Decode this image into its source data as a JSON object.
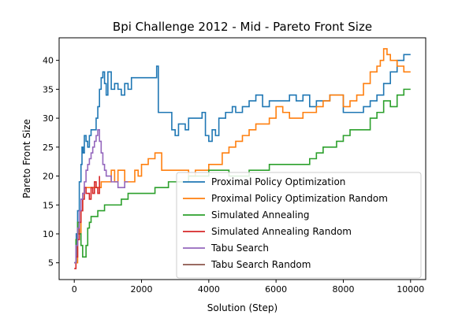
{
  "chart_data": {
    "type": "line",
    "title": "Bpi Challenge 2012 - Mid - Pareto Front Size",
    "xlabel": "Solution (Step)",
    "ylabel": "Pareto Front Size",
    "xlim": [
      -450,
      10450
    ],
    "ylim": [
      2.1,
      43.9
    ],
    "xticks": [
      0,
      2000,
      4000,
      6000,
      8000,
      10000
    ],
    "yticks": [
      5,
      10,
      15,
      20,
      25,
      30,
      35,
      40
    ],
    "legend_position": "lower-right",
    "series": [
      {
        "name": "Proximal Policy Optimization",
        "color": "#1f77b4",
        "x": [
          0,
          60,
          100,
          150,
          200,
          230,
          260,
          300,
          350,
          400,
          450,
          500,
          550,
          600,
          650,
          700,
          750,
          800,
          850,
          900,
          950,
          1000,
          1100,
          1200,
          1300,
          1400,
          1500,
          1600,
          1700,
          1800,
          1900,
          2000,
          2100,
          2200,
          2300,
          2400,
          2450,
          2500,
          2800,
          2900,
          3000,
          3100,
          3200,
          3300,
          3400,
          3500,
          3600,
          3700,
          3800,
          3900,
          4000,
          4100,
          4200,
          4300,
          4400,
          4500,
          4600,
          4700,
          4800,
          5000,
          5200,
          5400,
          5600,
          5800,
          6000,
          6200,
          6400,
          6600,
          6800,
          7000,
          7200,
          7400,
          7600,
          7800,
          8000,
          8200,
          8400,
          8600,
          8800,
          9000,
          9200,
          9400,
          9600,
          9800,
          10000
        ],
        "values": [
          5,
          10,
          14,
          19,
          22,
          25,
          24,
          27,
          26,
          25,
          27,
          28,
          28,
          28,
          30,
          32,
          35,
          37,
          38,
          36,
          34,
          38,
          35,
          36,
          35,
          34,
          36,
          35,
          37,
          37,
          37,
          37,
          37,
          37,
          37,
          37,
          39,
          31,
          31,
          28,
          27,
          29,
          29,
          28,
          30,
          30,
          30,
          30,
          31,
          27,
          26,
          28,
          27,
          30,
          30,
          31,
          31,
          32,
          31,
          32,
          33,
          34,
          32,
          33,
          33,
          33,
          34,
          33,
          34,
          32,
          33,
          33,
          34,
          34,
          31,
          31,
          31,
          32,
          33,
          34,
          36,
          38,
          40,
          41,
          41
        ]
      },
      {
        "name": "Proximal Policy Optimization Random",
        "color": "#ff7f0e",
        "x": [
          0,
          100,
          200,
          250,
          300,
          400,
          500,
          600,
          700,
          800,
          900,
          1000,
          1100,
          1200,
          1300,
          1400,
          1500,
          1600,
          1700,
          1800,
          1900,
          2000,
          2100,
          2200,
          2300,
          2400,
          2500,
          2600,
          2800,
          3000,
          3200,
          3400,
          3600,
          3800,
          4000,
          4200,
          4400,
          4600,
          4800,
          5000,
          5200,
          5400,
          5600,
          5800,
          6000,
          6200,
          6400,
          6600,
          6800,
          7000,
          7200,
          7400,
          7600,
          7800,
          8000,
          8200,
          8400,
          8600,
          8800,
          9000,
          9100,
          9200,
          9300,
          9400,
          9600,
          9800,
          10000
        ],
        "values": [
          5,
          10,
          14,
          17,
          18,
          18,
          18,
          18,
          18,
          19,
          19,
          19,
          21,
          19,
          21,
          21,
          19,
          19,
          19,
          21,
          20,
          22,
          22,
          23,
          23,
          24,
          24,
          21,
          21,
          21,
          21,
          20,
          21,
          21,
          22,
          22,
          24,
          25,
          26,
          27,
          28,
          29,
          29,
          30,
          32,
          31,
          30,
          30,
          31,
          31,
          32,
          33,
          34,
          34,
          32,
          33,
          34,
          36,
          38,
          39,
          40,
          42,
          41,
          40,
          39,
          38,
          38
        ]
      },
      {
        "name": "Simulated Annealing",
        "color": "#2ca02c",
        "x": [
          0,
          50,
          100,
          150,
          200,
          250,
          300,
          350,
          400,
          450,
          500,
          600,
          700,
          800,
          900,
          1000,
          1200,
          1400,
          1600,
          1800,
          2000,
          2200,
          2400,
          2600,
          2800,
          3000,
          3200,
          3400,
          3600,
          3800,
          4000,
          4200,
          4400,
          4600,
          4800,
          5000,
          5200,
          5400,
          5600,
          5800,
          6000,
          6200,
          6400,
          6600,
          6800,
          7000,
          7200,
          7400,
          7600,
          7800,
          8000,
          8200,
          8400,
          8600,
          8800,
          9000,
          9200,
          9400,
          9600,
          9800,
          10000
        ],
        "values": [
          5,
          9,
          12,
          10,
          8,
          6,
          6,
          8,
          11,
          12,
          13,
          13,
          14,
          14,
          15,
          15,
          15,
          16,
          17,
          17,
          17,
          17,
          18,
          18,
          19,
          19,
          19,
          20,
          20,
          20,
          21,
          21,
          21,
          20,
          20,
          20,
          21,
          21,
          21,
          22,
          22,
          22,
          22,
          22,
          22,
          23,
          24,
          25,
          25,
          26,
          27,
          28,
          28,
          28,
          30,
          31,
          33,
          32,
          34,
          35,
          35
        ]
      },
      {
        "name": "Simulated Annealing Random",
        "color": "#d62728",
        "x": [
          0,
          50,
          100,
          150,
          200,
          250,
          300,
          350,
          400,
          450,
          500,
          550,
          600,
          650,
          700,
          750
        ],
        "values": [
          4,
          6,
          9,
          12,
          14,
          16,
          18,
          17,
          17,
          16,
          18,
          17,
          19,
          18,
          17,
          20
        ]
      },
      {
        "name": "Tabu Search",
        "color": "#9467bd",
        "x": [
          0,
          50,
          100,
          150,
          200,
          250,
          300,
          350,
          400,
          450,
          500,
          550,
          600,
          650,
          700,
          750,
          800,
          850,
          900,
          950,
          1000,
          1100,
          1200,
          1300,
          1400,
          1500,
          1600
        ],
        "values": [
          5,
          8,
          11,
          14,
          16,
          17,
          19,
          21,
          22,
          23,
          24,
          25,
          26,
          27,
          28,
          26,
          24,
          22,
          21,
          20,
          20,
          19,
          19,
          18,
          18,
          19,
          19
        ]
      },
      {
        "name": "Tabu Search Random",
        "color": "#8c564b",
        "x": [],
        "values": []
      }
    ]
  }
}
